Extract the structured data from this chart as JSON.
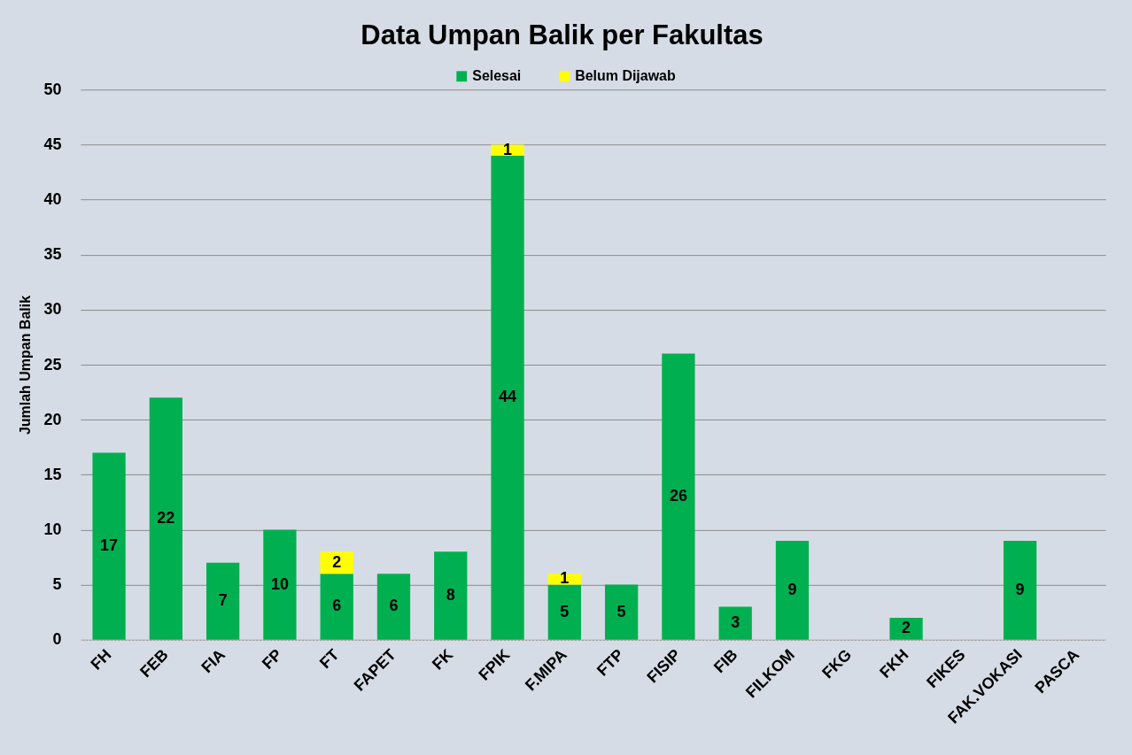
{
  "chart_data": {
    "type": "bar",
    "title": "Data Umpan Balik per Fakultas",
    "ylabel": "Jumlah Umpan Balik",
    "categories": [
      "FH",
      "FEB",
      "FIA",
      "FP",
      "FT",
      "FAPET",
      "FK",
      "FPIK",
      "F.MIPA",
      "FTP",
      "FISIP",
      "FIB",
      "FILKOM",
      "FKG",
      "FKH",
      "FIKES",
      "FAK.VOKASI",
      "PASCA"
    ],
    "series": [
      {
        "name": "Selesai",
        "color": "#00b050",
        "values": [
          17,
          22,
          7,
          10,
          6,
          6,
          8,
          44,
          5,
          5,
          26,
          3,
          9,
          0,
          2,
          0,
          9,
          0
        ],
        "value_labels": [
          "17",
          "22",
          "7",
          "10",
          "6",
          "6",
          "8",
          "44",
          "5",
          "5",
          "26",
          "3",
          "9",
          null,
          "2",
          null,
          "9",
          null
        ]
      },
      {
        "name": "Belum Dijawab",
        "color": "#ffff00",
        "values": [
          0,
          0,
          0,
          0,
          2,
          0,
          0,
          1,
          1,
          0,
          0,
          0,
          0,
          0,
          0,
          0,
          0,
          0
        ],
        "value_labels": [
          null,
          null,
          null,
          null,
          "2",
          null,
          null,
          "1",
          "1",
          null,
          null,
          null,
          null,
          null,
          null,
          null,
          null,
          null
        ]
      }
    ],
    "stacked": true,
    "ylim": [
      0,
      50
    ],
    "yticks": [
      0,
      5,
      10,
      15,
      20,
      25,
      30,
      35,
      40,
      45,
      50
    ],
    "grid": "y",
    "legend": "top"
  }
}
